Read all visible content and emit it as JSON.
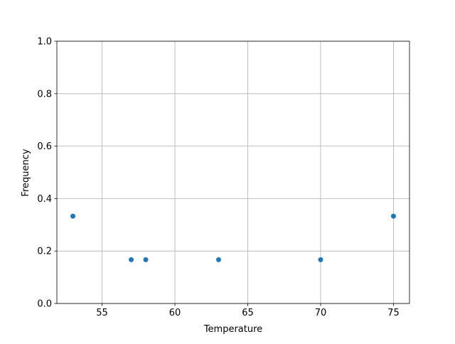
{
  "chart_data": {
    "type": "scatter",
    "title": "",
    "xlabel": "Temperature",
    "ylabel": "Frequency",
    "x": [
      53,
      57,
      58,
      63,
      70,
      75
    ],
    "y": [
      0.333,
      0.167,
      0.167,
      0.167,
      0.167,
      0.333
    ],
    "xlim": [
      51.9,
      76.1
    ],
    "ylim": [
      0.0,
      1.0
    ],
    "xticks": [
      55,
      60,
      65,
      70,
      75
    ],
    "xtick_labels": [
      "55",
      "60",
      "65",
      "70",
      "75"
    ],
    "yticks": [
      0.0,
      0.2,
      0.4,
      0.6,
      0.8,
      1.0
    ],
    "ytick_labels": [
      "0.0",
      "0.2",
      "0.4",
      "0.6",
      "0.8",
      "1.0"
    ],
    "grid": true,
    "marker_color": "#1f77b4"
  }
}
